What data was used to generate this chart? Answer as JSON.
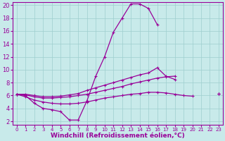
{
  "x": [
    0,
    1,
    2,
    3,
    4,
    5,
    6,
    7,
    8,
    9,
    10,
    11,
    12,
    13,
    14,
    15,
    16,
    17,
    18,
    19,
    20,
    21,
    22,
    23
  ],
  "line_main": [
    6.2,
    6.0,
    4.8,
    4.0,
    3.8,
    3.5,
    2.2,
    2.2,
    5.2,
    9.0,
    12.0,
    15.8,
    18.0,
    20.2,
    20.2,
    19.5,
    17.0,
    null,
    null,
    null,
    null,
    null,
    null,
    null
  ],
  "line_upper": [
    6.2,
    6.2,
    6.0,
    5.8,
    5.8,
    5.9,
    6.1,
    6.3,
    6.8,
    7.2,
    7.6,
    8.0,
    8.4,
    8.8,
    9.2,
    9.5,
    10.3,
    9.0,
    8.5,
    null,
    null,
    null,
    null,
    6.3
  ],
  "line_mid": [
    6.2,
    6.1,
    5.8,
    5.6,
    5.6,
    5.7,
    5.8,
    6.0,
    6.2,
    6.5,
    6.8,
    7.1,
    7.4,
    7.8,
    8.1,
    8.4,
    8.7,
    8.9,
    9.0,
    null,
    null,
    null,
    null,
    6.3
  ],
  "line_low": [
    6.2,
    5.8,
    5.3,
    5.0,
    4.8,
    4.7,
    4.7,
    4.8,
    5.0,
    5.3,
    5.6,
    5.8,
    6.0,
    6.2,
    6.3,
    6.5,
    6.5,
    6.4,
    6.2,
    6.0,
    5.9,
    null,
    null,
    6.3
  ],
  "color": "#990099",
  "bg_color": "#c8eaea",
  "grid_color": "#9ecece",
  "xlabel": "Windchill (Refroidissement éolien,°C)",
  "xlim": [
    -0.5,
    23.5
  ],
  "ylim": [
    1.5,
    20.5
  ],
  "xticks": [
    0,
    1,
    2,
    3,
    4,
    5,
    6,
    7,
    8,
    9,
    10,
    11,
    12,
    13,
    14,
    15,
    16,
    17,
    18,
    19,
    20,
    21,
    22,
    23
  ],
  "yticks": [
    2,
    4,
    6,
    8,
    10,
    12,
    14,
    16,
    18,
    20
  ],
  "xlabel_fontsize": 6.5,
  "tick_fontsize_x": 5,
  "tick_fontsize_y": 6
}
